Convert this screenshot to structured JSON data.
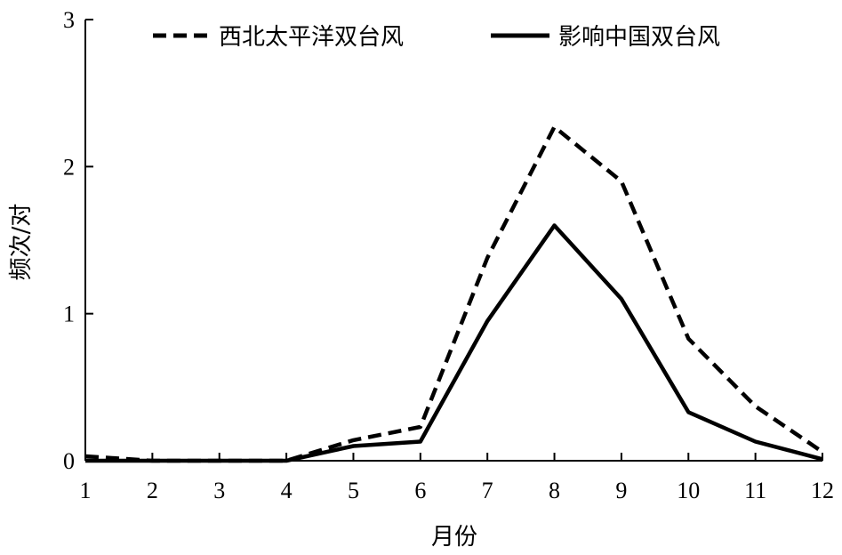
{
  "chart_data": {
    "type": "line",
    "title": "",
    "xlabel": "月份",
    "ylabel": "频次/对",
    "x": [
      1,
      2,
      3,
      4,
      5,
      6,
      7,
      8,
      9,
      10,
      11,
      12
    ],
    "x_tick_labels": [
      "1",
      "2",
      "3",
      "4",
      "5",
      "6",
      "7",
      "8",
      "9",
      "10",
      "11",
      "12"
    ],
    "y_ticks": [
      0,
      1,
      2,
      3
    ],
    "y_tick_labels": [
      "0",
      "1",
      "2",
      "3"
    ],
    "xlim": [
      1,
      12
    ],
    "ylim": [
      0,
      3
    ],
    "grid": false,
    "legend_position": "top",
    "series": [
      {
        "name": "西北太平洋双台风",
        "style": "dashed",
        "color": "#000000",
        "values": [
          0.03,
          0,
          0,
          0,
          0.14,
          0.23,
          1.38,
          2.27,
          1.9,
          0.83,
          0.37,
          0.06
        ]
      },
      {
        "name": "影响中国双台风",
        "style": "solid",
        "color": "#000000",
        "values": [
          0,
          0,
          0,
          0,
          0.1,
          0.13,
          0.95,
          1.6,
          1.1,
          0.33,
          0.13,
          0.01
        ]
      }
    ]
  }
}
